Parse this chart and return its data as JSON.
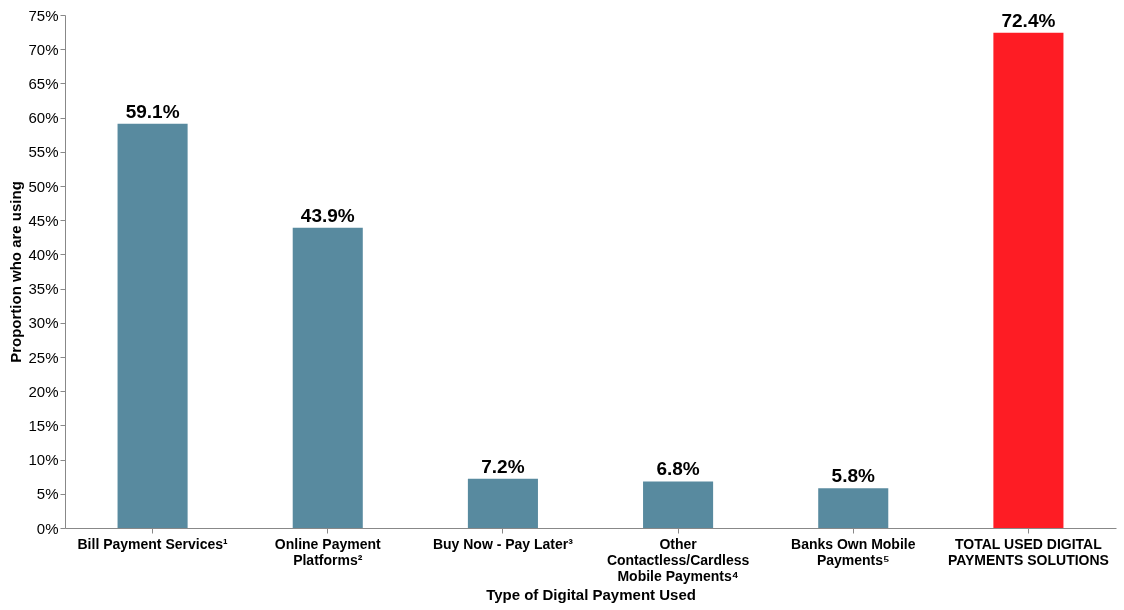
{
  "chart_data": {
    "type": "bar",
    "xlabel": "Type of Digital Payment Used",
    "ylabel": "Proportion who are using",
    "categories": [
      "Bill Payment Services¹",
      "Online Payment Platforms²",
      "Buy Now - Pay Later³",
      "Other Contactless/Cardless Mobile Payments⁴",
      "Banks Own Mobile Payments⁵",
      "TOTAL USED DIGITAL PAYMENTS SOLUTIONS"
    ],
    "values": [
      59.1,
      43.9,
      7.2,
      6.8,
      5.8,
      72.4
    ],
    "colors": [
      "#588a9f",
      "#588a9f",
      "#588a9f",
      "#588a9f",
      "#588a9f",
      "#fe1c24"
    ],
    "value_labels": [
      "59.1%",
      "43.9%",
      "7.2%",
      "6.8%",
      "5.8%",
      "72.4%"
    ],
    "ylim": [
      0,
      75
    ],
    "yticks": [
      {
        "value": 0,
        "label": "0%"
      },
      {
        "value": 5,
        "label": "5%"
      },
      {
        "value": 10,
        "label": "10%"
      },
      {
        "value": 15,
        "label": "15%"
      },
      {
        "value": 20,
        "label": "20%"
      },
      {
        "value": 25,
        "label": "25%"
      },
      {
        "value": 30,
        "label": "30%"
      },
      {
        "value": 35,
        "label": "35%"
      },
      {
        "value": 40,
        "label": "40%"
      },
      {
        "value": 45,
        "label": "45%"
      },
      {
        "value": 50,
        "label": "50%"
      },
      {
        "value": 55,
        "label": "55%"
      },
      {
        "value": 60,
        "label": "60%"
      },
      {
        "value": 65,
        "label": "65%"
      },
      {
        "value": 70,
        "label": "70%"
      },
      {
        "value": 75,
        "label": "75%"
      }
    ],
    "grid": false
  }
}
